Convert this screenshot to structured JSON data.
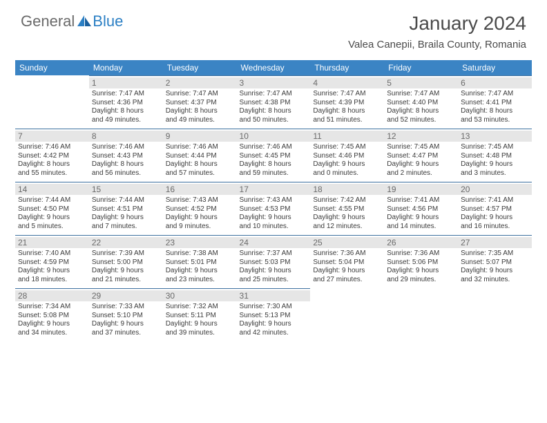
{
  "logo": {
    "text1": "General",
    "text2": "Blue"
  },
  "title": "January 2024",
  "location": "Valea Canepii, Braila County, Romania",
  "colors": {
    "header_bg": "#3b84c4",
    "header_fg": "#ffffff",
    "daynum_bg": "#e6e6e6",
    "daynum_fg": "#6a6a6a",
    "rule": "#3b6f9e",
    "text": "#3a3a3a",
    "title_fg": "#4a4a4a",
    "logo_gray": "#6a6a6a",
    "logo_blue": "#2b7fc4"
  },
  "weekdays": [
    "Sunday",
    "Monday",
    "Tuesday",
    "Wednesday",
    "Thursday",
    "Friday",
    "Saturday"
  ],
  "weeks": [
    [
      null,
      {
        "n": "1",
        "sr": "Sunrise: 7:47 AM",
        "ss": "Sunset: 4:36 PM",
        "d1": "Daylight: 8 hours",
        "d2": "and 49 minutes."
      },
      {
        "n": "2",
        "sr": "Sunrise: 7:47 AM",
        "ss": "Sunset: 4:37 PM",
        "d1": "Daylight: 8 hours",
        "d2": "and 49 minutes."
      },
      {
        "n": "3",
        "sr": "Sunrise: 7:47 AM",
        "ss": "Sunset: 4:38 PM",
        "d1": "Daylight: 8 hours",
        "d2": "and 50 minutes."
      },
      {
        "n": "4",
        "sr": "Sunrise: 7:47 AM",
        "ss": "Sunset: 4:39 PM",
        "d1": "Daylight: 8 hours",
        "d2": "and 51 minutes."
      },
      {
        "n": "5",
        "sr": "Sunrise: 7:47 AM",
        "ss": "Sunset: 4:40 PM",
        "d1": "Daylight: 8 hours",
        "d2": "and 52 minutes."
      },
      {
        "n": "6",
        "sr": "Sunrise: 7:47 AM",
        "ss": "Sunset: 4:41 PM",
        "d1": "Daylight: 8 hours",
        "d2": "and 53 minutes."
      }
    ],
    [
      {
        "n": "7",
        "sr": "Sunrise: 7:46 AM",
        "ss": "Sunset: 4:42 PM",
        "d1": "Daylight: 8 hours",
        "d2": "and 55 minutes."
      },
      {
        "n": "8",
        "sr": "Sunrise: 7:46 AM",
        "ss": "Sunset: 4:43 PM",
        "d1": "Daylight: 8 hours",
        "d2": "and 56 minutes."
      },
      {
        "n": "9",
        "sr": "Sunrise: 7:46 AM",
        "ss": "Sunset: 4:44 PM",
        "d1": "Daylight: 8 hours",
        "d2": "and 57 minutes."
      },
      {
        "n": "10",
        "sr": "Sunrise: 7:46 AM",
        "ss": "Sunset: 4:45 PM",
        "d1": "Daylight: 8 hours",
        "d2": "and 59 minutes."
      },
      {
        "n": "11",
        "sr": "Sunrise: 7:45 AM",
        "ss": "Sunset: 4:46 PM",
        "d1": "Daylight: 9 hours",
        "d2": "and 0 minutes."
      },
      {
        "n": "12",
        "sr": "Sunrise: 7:45 AM",
        "ss": "Sunset: 4:47 PM",
        "d1": "Daylight: 9 hours",
        "d2": "and 2 minutes."
      },
      {
        "n": "13",
        "sr": "Sunrise: 7:45 AM",
        "ss": "Sunset: 4:48 PM",
        "d1": "Daylight: 9 hours",
        "d2": "and 3 minutes."
      }
    ],
    [
      {
        "n": "14",
        "sr": "Sunrise: 7:44 AM",
        "ss": "Sunset: 4:50 PM",
        "d1": "Daylight: 9 hours",
        "d2": "and 5 minutes."
      },
      {
        "n": "15",
        "sr": "Sunrise: 7:44 AM",
        "ss": "Sunset: 4:51 PM",
        "d1": "Daylight: 9 hours",
        "d2": "and 7 minutes."
      },
      {
        "n": "16",
        "sr": "Sunrise: 7:43 AM",
        "ss": "Sunset: 4:52 PM",
        "d1": "Daylight: 9 hours",
        "d2": "and 9 minutes."
      },
      {
        "n": "17",
        "sr": "Sunrise: 7:43 AM",
        "ss": "Sunset: 4:53 PM",
        "d1": "Daylight: 9 hours",
        "d2": "and 10 minutes."
      },
      {
        "n": "18",
        "sr": "Sunrise: 7:42 AM",
        "ss": "Sunset: 4:55 PM",
        "d1": "Daylight: 9 hours",
        "d2": "and 12 minutes."
      },
      {
        "n": "19",
        "sr": "Sunrise: 7:41 AM",
        "ss": "Sunset: 4:56 PM",
        "d1": "Daylight: 9 hours",
        "d2": "and 14 minutes."
      },
      {
        "n": "20",
        "sr": "Sunrise: 7:41 AM",
        "ss": "Sunset: 4:57 PM",
        "d1": "Daylight: 9 hours",
        "d2": "and 16 minutes."
      }
    ],
    [
      {
        "n": "21",
        "sr": "Sunrise: 7:40 AM",
        "ss": "Sunset: 4:59 PM",
        "d1": "Daylight: 9 hours",
        "d2": "and 18 minutes."
      },
      {
        "n": "22",
        "sr": "Sunrise: 7:39 AM",
        "ss": "Sunset: 5:00 PM",
        "d1": "Daylight: 9 hours",
        "d2": "and 21 minutes."
      },
      {
        "n": "23",
        "sr": "Sunrise: 7:38 AM",
        "ss": "Sunset: 5:01 PM",
        "d1": "Daylight: 9 hours",
        "d2": "and 23 minutes."
      },
      {
        "n": "24",
        "sr": "Sunrise: 7:37 AM",
        "ss": "Sunset: 5:03 PM",
        "d1": "Daylight: 9 hours",
        "d2": "and 25 minutes."
      },
      {
        "n": "25",
        "sr": "Sunrise: 7:36 AM",
        "ss": "Sunset: 5:04 PM",
        "d1": "Daylight: 9 hours",
        "d2": "and 27 minutes."
      },
      {
        "n": "26",
        "sr": "Sunrise: 7:36 AM",
        "ss": "Sunset: 5:06 PM",
        "d1": "Daylight: 9 hours",
        "d2": "and 29 minutes."
      },
      {
        "n": "27",
        "sr": "Sunrise: 7:35 AM",
        "ss": "Sunset: 5:07 PM",
        "d1": "Daylight: 9 hours",
        "d2": "and 32 minutes."
      }
    ],
    [
      {
        "n": "28",
        "sr": "Sunrise: 7:34 AM",
        "ss": "Sunset: 5:08 PM",
        "d1": "Daylight: 9 hours",
        "d2": "and 34 minutes."
      },
      {
        "n": "29",
        "sr": "Sunrise: 7:33 AM",
        "ss": "Sunset: 5:10 PM",
        "d1": "Daylight: 9 hours",
        "d2": "and 37 minutes."
      },
      {
        "n": "30",
        "sr": "Sunrise: 7:32 AM",
        "ss": "Sunset: 5:11 PM",
        "d1": "Daylight: 9 hours",
        "d2": "and 39 minutes."
      },
      {
        "n": "31",
        "sr": "Sunrise: 7:30 AM",
        "ss": "Sunset: 5:13 PM",
        "d1": "Daylight: 9 hours",
        "d2": "and 42 minutes."
      },
      null,
      null,
      null
    ]
  ]
}
